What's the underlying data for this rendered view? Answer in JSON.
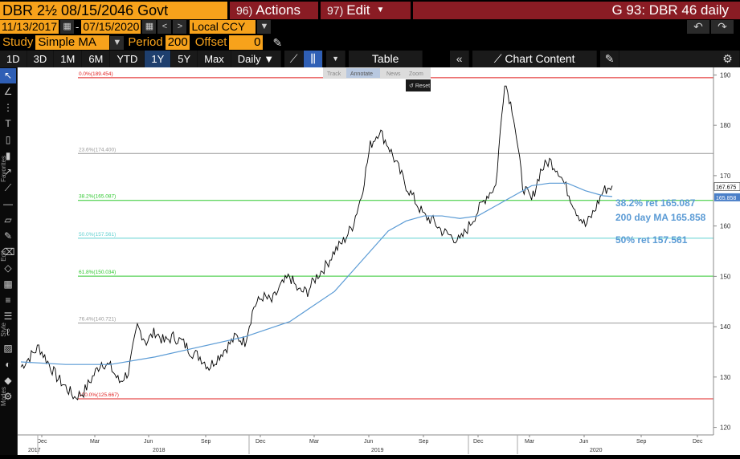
{
  "header": {
    "ticker": "DBR 2½ 08/15/2046 Govt",
    "actions_num": "96)",
    "actions_label": "Actions",
    "edit_num": "97)",
    "edit_label": "Edit",
    "title": "G 93: DBR 46 daily"
  },
  "dates": {
    "start": "11/13/2017",
    "end": "07/15/2020",
    "currency": "Local CCY"
  },
  "study": {
    "study_label": "Study",
    "study_value": "Simple MA",
    "period_label": "Period",
    "period_value": "200",
    "offset_label": "Offset",
    "offset_value": "0"
  },
  "ranges": [
    "1D",
    "3D",
    "1M",
    "6M",
    "YTD",
    "1Y",
    "5Y",
    "Max"
  ],
  "selected_range": "1Y",
  "frequency": "Daily",
  "table_label": "Table",
  "chart_content_label": "Chart Content",
  "toolbar_labels": {
    "favorites": "Favorites",
    "edit": "Edit",
    "style": "Style",
    "modes": "Modes"
  },
  "overlay_menu": {
    "track": "Track",
    "annotate": "Annotate",
    "news": "News",
    "zoom": "Zoom",
    "reset": "Reset"
  },
  "chart_data": {
    "type": "line",
    "y_ticks": [
      120,
      130,
      140,
      150,
      160,
      170,
      180,
      190
    ],
    "ylim": [
      118.5,
      191.5
    ],
    "x_month_labels": [
      "Dec",
      "Mar",
      "Jun",
      "Sep",
      "Dec",
      "Mar",
      "Jun",
      "Sep",
      "Dec",
      "Mar",
      "Jun",
      "Sep",
      "Dec"
    ],
    "x_year_labels": [
      "2017",
      "2018",
      "2019",
      "2020"
    ],
    "fib_levels": [
      {
        "label": "0.0%(189.454)",
        "value": 189.454,
        "color": "#e02020"
      },
      {
        "label": "23.6%(174.400)",
        "value": 174.4,
        "color": "#999999"
      },
      {
        "label": "38.2%(165.087)",
        "value": 165.087,
        "color": "#2ec82e"
      },
      {
        "label": "50.0%(157.561)",
        "value": 157.561,
        "color": "#5fd0d0"
      },
      {
        "label": "61.8%(150.034)",
        "value": 150.034,
        "color": "#2ec82e"
      },
      {
        "label": "76.4%(140.721)",
        "value": 140.721,
        "color": "#999999"
      },
      {
        "label": "100.0%(125.667)",
        "value": 125.667,
        "color": "#e02020"
      }
    ],
    "annotations": [
      {
        "text": "38.2% ret 165.087"
      },
      {
        "text": "200 day MA 165.858"
      },
      {
        "text": "50% ret 157.561"
      }
    ],
    "last_price": "167.675",
    "last_ma": "165.858",
    "series": [
      {
        "name": "DBR 46",
        "color": "#000000",
        "x": [
          0,
          2,
          4,
          6,
          8,
          10,
          12,
          14,
          16,
          18,
          20,
          22,
          24,
          26,
          28,
          30,
          32,
          34,
          36,
          38,
          40,
          42,
          44,
          46,
          48,
          50,
          52,
          54,
          56,
          58,
          60,
          62,
          64,
          66,
          68,
          70,
          72,
          74,
          76,
          78,
          80,
          82,
          84,
          86,
          88,
          90,
          92,
          94,
          96,
          98,
          100,
          102,
          104,
          106,
          108,
          110,
          112,
          114,
          116,
          118,
          120,
          122,
          124,
          126,
          128,
          130,
          132
        ],
        "values": [
          132,
          134,
          136,
          133,
          130,
          128,
          126,
          127,
          130,
          133,
          132,
          129,
          131,
          140,
          137,
          139,
          137,
          138,
          137,
          135,
          134,
          132,
          134,
          136,
          138,
          137,
          144,
          146,
          145,
          148,
          150,
          147,
          147,
          150,
          152,
          155,
          157,
          160,
          166,
          176,
          179,
          176,
          172,
          168,
          165,
          162,
          161,
          159,
          158,
          157,
          160,
          163,
          166,
          168,
          189,
          182,
          168,
          165,
          171,
          173,
          171,
          167,
          163,
          160,
          163,
          167,
          168
        ]
      },
      {
        "name": "200 day MA",
        "color": "#5b9bd5",
        "x": [
          0,
          10,
          20,
          30,
          40,
          50,
          60,
          70,
          74,
          78,
          82,
          86,
          90,
          94,
          98,
          102,
          106,
          110,
          114,
          118,
          122,
          126,
          130,
          132
        ],
        "values": [
          133,
          132.5,
          132.5,
          134,
          136,
          138,
          141,
          147,
          151,
          155,
          159,
          161,
          162,
          162,
          161.5,
          162,
          164,
          166,
          168,
          168.5,
          168.5,
          167,
          166,
          165.858
        ]
      }
    ]
  }
}
